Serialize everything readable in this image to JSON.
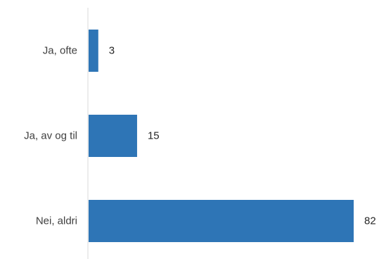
{
  "chart_data": {
    "type": "bar",
    "orientation": "horizontal",
    "categories": [
      "Ja, ofte",
      "Ja, av og til",
      "Nei, aldri"
    ],
    "values": [
      3,
      15,
      82
    ],
    "title": "",
    "xlabel": "",
    "ylabel": "",
    "xlim": [
      0,
      82
    ],
    "grid": false,
    "legend": "none",
    "bar_color": "#2E75B6",
    "axis_color": "#D9D9D9"
  }
}
